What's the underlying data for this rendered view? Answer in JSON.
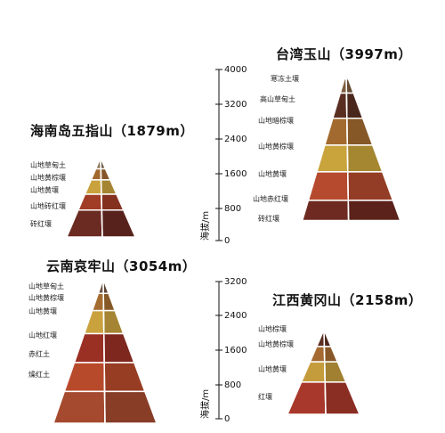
{
  "axis": {
    "label": "海拔/m",
    "top_ticks": [
      "4000",
      "3200",
      "2400",
      "1600",
      "800",
      "0"
    ],
    "bottom_ticks": [
      "3200",
      "2400",
      "1600",
      "800",
      "0"
    ]
  },
  "mountains": [
    {
      "id": "yushan",
      "title": "台湾玉山（3997m）",
      "layers": [
        {
          "label": "寒冻土壤",
          "color": "#8aa7a0"
        },
        {
          "label": "高山草甸土",
          "color": "#7c5b3e"
        },
        {
          "label": "山地暗棕壤",
          "color": "#5a2f22"
        },
        {
          "label": "山地黄棕壤",
          "color": "#a36a2f"
        },
        {
          "label": "山地黄壤",
          "color": "#c9a33c"
        },
        {
          "label": "山地赤红壤",
          "color": "#b54a2e"
        },
        {
          "label": "砖红壤",
          "color": "#6e2a20"
        }
      ]
    },
    {
      "id": "wuzhi",
      "title": "海南岛五指山（1879m）",
      "layers": [
        {
          "label": "山地草甸土",
          "color": "#8a7356"
        },
        {
          "label": "山地黄棕壤",
          "color": "#a2692f"
        },
        {
          "label": "山地黄壤",
          "color": "#c9a23d"
        },
        {
          "label": "山地砖红壤",
          "color": "#a13c27"
        },
        {
          "label": "砖红壤",
          "color": "#6b2a22"
        }
      ]
    },
    {
      "id": "ailao",
      "title": "云南哀牢山（3054m）",
      "layers": [
        {
          "label": "山地草甸土",
          "color": "#6f5240"
        },
        {
          "label": "山地黄棕壤",
          "color": "#a56c30"
        },
        {
          "label": "山地黄壤",
          "color": "#c9a23e"
        },
        {
          "label": "山地红壤",
          "color": "#9a2f24"
        },
        {
          "label": "赤红土",
          "color": "#b84a2c"
        },
        {
          "label": "燥红土",
          "color": "#a54a2e"
        }
      ]
    },
    {
      "id": "huanggang",
      "title": "江西黄冈山（2158m）",
      "layers": [
        {
          "label": "山地棕壤",
          "color": "#5b2f23"
        },
        {
          "label": "山地黄棕壤",
          "color": "#a56a31"
        },
        {
          "label": "山地黄壤",
          "color": "#c59c3c"
        },
        {
          "label": "红壤",
          "color": "#a8382b"
        }
      ]
    }
  ]
}
